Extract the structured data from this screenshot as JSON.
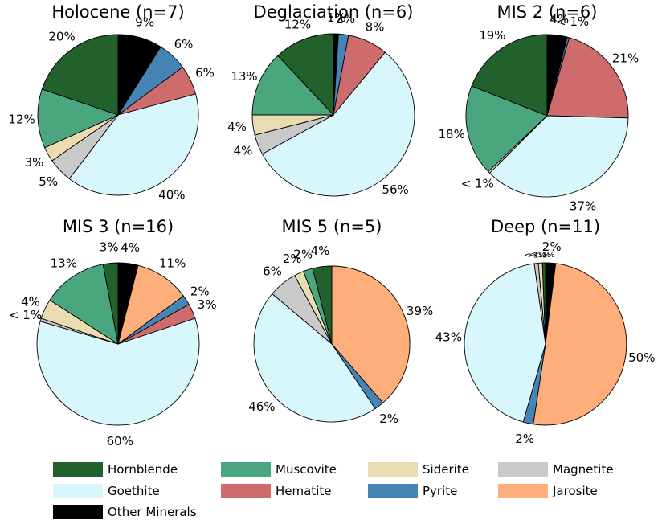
{
  "chart_data": {
    "type": "pie",
    "minerals": [
      {
        "key": "other",
        "name": "Other Minerals",
        "color": "#000000"
      },
      {
        "key": "jarosite",
        "name": "Jarosite",
        "color": "#FDAE7A"
      },
      {
        "key": "pyrite",
        "name": "Pyrite",
        "color": "#4585B5"
      },
      {
        "key": "hematite",
        "name": "Hematite",
        "color": "#CE6B6C"
      },
      {
        "key": "goethite",
        "name": "Goethite",
        "color": "#D8F7FD"
      },
      {
        "key": "magnetite",
        "name": "Magnetite",
        "color": "#C9C9C9"
      },
      {
        "key": "siderite",
        "name": "Siderite",
        "color": "#E8DCB0"
      },
      {
        "key": "muscovite",
        "name": "Muscovite",
        "color": "#4AA67E"
      },
      {
        "key": "hornblende",
        "name": "Hornblende",
        "color": "#22612C"
      }
    ],
    "legend": {
      "placement": "bottom",
      "items": [
        {
          "name": "Hornblende",
          "color": "#22612C"
        },
        {
          "name": "Muscovite",
          "color": "#4AA67E"
        },
        {
          "name": "Siderite",
          "color": "#E8DCB0"
        },
        {
          "name": "Magnetite",
          "color": "#C9C9C9"
        },
        {
          "name": "Goethite",
          "color": "#D8F7FD"
        },
        {
          "name": "Hematite",
          "color": "#CE6B6C"
        },
        {
          "name": "Pyrite",
          "color": "#4585B5"
        },
        {
          "name": "Jarosite",
          "color": "#FDAE7A"
        },
        {
          "name": "Other Minerals",
          "color": "#000000"
        }
      ]
    },
    "charts": [
      {
        "title": "Holocene (n=7)",
        "slices": [
          {
            "mineral": "other",
            "value": 9,
            "label": "9%"
          },
          {
            "mineral": "pyrite",
            "value": 6,
            "label": "6%"
          },
          {
            "mineral": "hematite",
            "value": 6,
            "label": "6%"
          },
          {
            "mineral": "goethite",
            "value": 40,
            "label": "40%"
          },
          {
            "mineral": "magnetite",
            "value": 5,
            "label": "5%"
          },
          {
            "mineral": "siderite",
            "value": 3,
            "label": "3%"
          },
          {
            "mineral": "muscovite",
            "value": 12,
            "label": "12%"
          },
          {
            "mineral": "hornblende",
            "value": 20,
            "label": "20%"
          }
        ]
      },
      {
        "title": "Deglaciation (n=6)",
        "slices": [
          {
            "mineral": "other",
            "value": 1,
            "label": "1%"
          },
          {
            "mineral": "pyrite",
            "value": 2,
            "label": "2%"
          },
          {
            "mineral": "hematite",
            "value": 8,
            "label": "8%"
          },
          {
            "mineral": "goethite",
            "value": 56,
            "label": "56%"
          },
          {
            "mineral": "magnetite",
            "value": 4,
            "label": "4%"
          },
          {
            "mineral": "siderite",
            "value": 4,
            "label": "4%"
          },
          {
            "mineral": "muscovite",
            "value": 13,
            "label": "13%"
          },
          {
            "mineral": "hornblende",
            "value": 12,
            "label": "12%"
          }
        ]
      },
      {
        "title": "MIS 2 (n=6)",
        "slices": [
          {
            "mineral": "other",
            "value": 4,
            "label": "4%"
          },
          {
            "mineral": "pyrite",
            "value": 0.4,
            "label": "< 1%"
          },
          {
            "mineral": "hematite",
            "value": 21,
            "label": "21%"
          },
          {
            "mineral": "goethite",
            "value": 37,
            "label": "37%"
          },
          {
            "mineral": "siderite",
            "value": 0.4,
            "label": "< 1%"
          },
          {
            "mineral": "muscovite",
            "value": 18,
            "label": "18%"
          },
          {
            "mineral": "hornblende",
            "value": 19,
            "label": "19%"
          }
        ]
      },
      {
        "title": "MIS 3 (n=16)",
        "slices": [
          {
            "mineral": "other",
            "value": 4,
            "label": "4%"
          },
          {
            "mineral": "jarosite",
            "value": 11,
            "label": "11%"
          },
          {
            "mineral": "pyrite",
            "value": 2,
            "label": "2%"
          },
          {
            "mineral": "hematite",
            "value": 3,
            "label": "3%"
          },
          {
            "mineral": "goethite",
            "value": 60,
            "label": "60%"
          },
          {
            "mineral": "magnetite",
            "value": 0.6,
            "label": "< 1%"
          },
          {
            "mineral": "siderite",
            "value": 4,
            "label": "4%"
          },
          {
            "mineral": "muscovite",
            "value": 13,
            "label": "13%"
          },
          {
            "mineral": "hornblende",
            "value": 3,
            "label": "3%"
          }
        ]
      },
      {
        "title": "MIS 5 (n=5)",
        "slices": [
          {
            "mineral": "jarosite",
            "value": 39,
            "label": "39%"
          },
          {
            "mineral": "pyrite",
            "value": 2,
            "label": "2%"
          },
          {
            "mineral": "goethite",
            "value": 46,
            "label": "46%"
          },
          {
            "mineral": "magnetite",
            "value": 6,
            "label": "6%"
          },
          {
            "mineral": "siderite",
            "value": 2,
            "label": "2%"
          },
          {
            "mineral": "muscovite",
            "value": 2,
            "label": "2%"
          },
          {
            "mineral": "hornblende",
            "value": 4,
            "label": "4%"
          }
        ]
      },
      {
        "title": "Deep (n=11)",
        "slices": [
          {
            "mineral": "other",
            "value": 2,
            "label": "2%"
          },
          {
            "mineral": "jarosite",
            "value": 50,
            "label": "50%"
          },
          {
            "mineral": "pyrite",
            "value": 2,
            "label": "2%"
          },
          {
            "mineral": "goethite",
            "value": 43,
            "label": "43%"
          },
          {
            "mineral": "magnetite",
            "value": 0.8,
            "label": "< 1%"
          },
          {
            "mineral": "siderite",
            "value": 0.8,
            "label": "< 1%"
          },
          {
            "mineral": "hornblende",
            "value": 0.6,
            "label": "< 1%"
          }
        ]
      }
    ]
  }
}
